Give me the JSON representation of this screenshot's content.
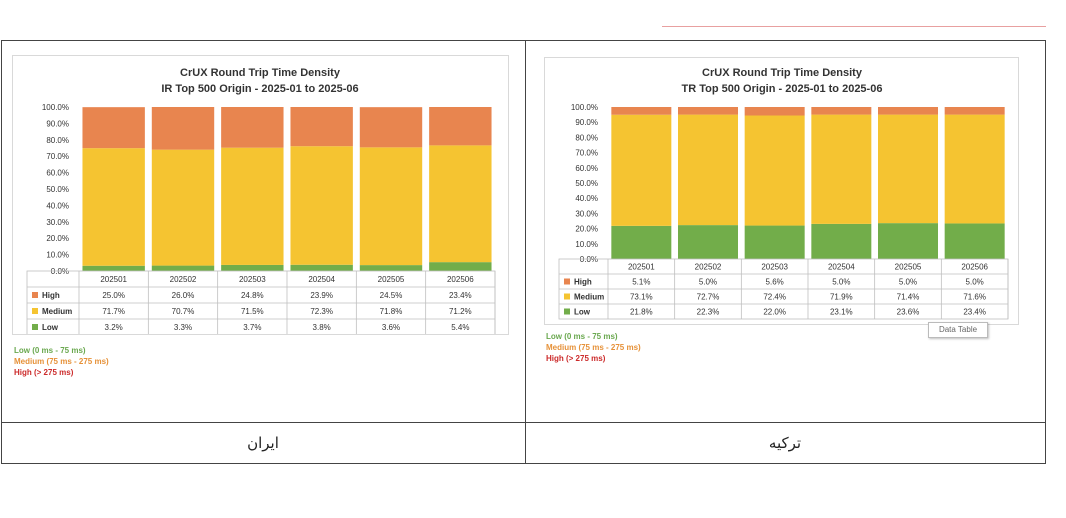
{
  "countries": {
    "left": "ایران",
    "right": "ترکیه"
  },
  "legend_notes": {
    "low": "Low (0 ms - 75 ms)",
    "medium": "Medium (75 ms - 275 ms)",
    "high": "High (> 275 ms)"
  },
  "tooltip": "Data Table",
  "colors": {
    "high": "#e8854f",
    "medium": "#f5c431",
    "low": "#72ad4a",
    "low_text": "#6aa84f",
    "medium_text": "#e69138",
    "high_text": "#cc2a2a"
  },
  "chart_data": [
    {
      "type": "bar",
      "stacked": true,
      "title": "CrUX Round Trip Time Density",
      "subtitle": "IR Top 500 Origin - 2025-01 to 2025-06",
      "categories": [
        "202501",
        "202502",
        "202503",
        "202504",
        "202505",
        "202506"
      ],
      "y_ticks": [
        "100.0%",
        "90.0%",
        "80.0%",
        "70.0%",
        "60.0%",
        "50.0%",
        "40.0%",
        "30.0%",
        "20.0%",
        "10.0%",
        "0.0%"
      ],
      "ylim": [
        0,
        100
      ],
      "series": [
        {
          "name": "High",
          "values": [
            25.0,
            26.0,
            24.8,
            23.9,
            24.5,
            23.4
          ],
          "labels": [
            "25.0%",
            "26.0%",
            "24.8%",
            "23.9%",
            "24.5%",
            "23.4%"
          ]
        },
        {
          "name": "Medium",
          "values": [
            71.7,
            70.7,
            71.5,
            72.3,
            71.8,
            71.2
          ],
          "labels": [
            "71.7%",
            "70.7%",
            "71.5%",
            "72.3%",
            "71.8%",
            "71.2%"
          ]
        },
        {
          "name": "Low",
          "values": [
            3.2,
            3.3,
            3.7,
            3.8,
            3.6,
            5.4
          ],
          "labels": [
            "3.2%",
            "3.3%",
            "3.7%",
            "3.8%",
            "3.6%",
            "5.4%"
          ]
        }
      ]
    },
    {
      "type": "bar",
      "stacked": true,
      "title": "CrUX Round Trip Time Density",
      "subtitle": "TR Top 500 Origin - 2025-01 to 2025-06",
      "categories": [
        "202501",
        "202502",
        "202503",
        "202504",
        "202505",
        "202506"
      ],
      "y_ticks": [
        "100.0%",
        "90.0%",
        "80.0%",
        "70.0%",
        "60.0%",
        "50.0%",
        "40.0%",
        "30.0%",
        "20.0%",
        "10.0%",
        "0.0%"
      ],
      "ylim": [
        0,
        100
      ],
      "series": [
        {
          "name": "High",
          "values": [
            5.1,
            5.0,
            5.6,
            5.0,
            5.0,
            5.0
          ],
          "labels": [
            "5.1%",
            "5.0%",
            "5.6%",
            "5.0%",
            "5.0%",
            "5.0%"
          ]
        },
        {
          "name": "Medium",
          "values": [
            73.1,
            72.7,
            72.4,
            71.9,
            71.4,
            71.6
          ],
          "labels": [
            "73.1%",
            "72.7%",
            "72.4%",
            "71.9%",
            "71.4%",
            "71.6%"
          ]
        },
        {
          "name": "Low",
          "values": [
            21.8,
            22.3,
            22.0,
            23.1,
            23.6,
            23.4
          ],
          "labels": [
            "21.8%",
            "22.3%",
            "22.0%",
            "23.1%",
            "23.6%",
            "23.4%"
          ]
        }
      ]
    }
  ]
}
